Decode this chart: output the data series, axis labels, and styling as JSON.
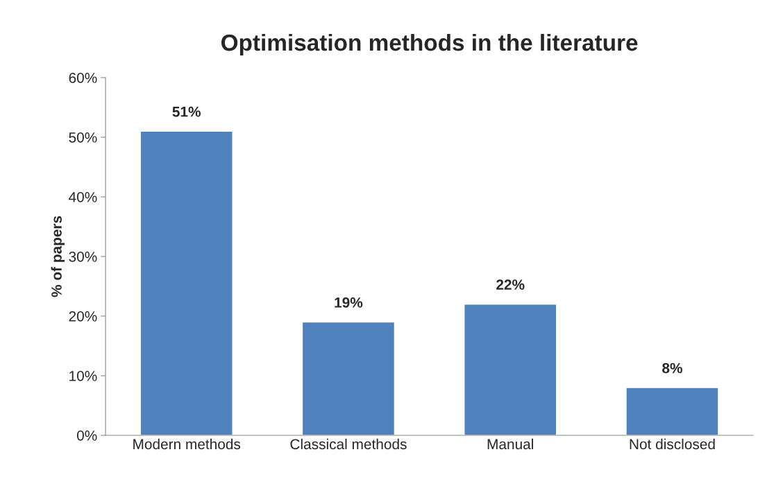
{
  "chart_data": {
    "type": "bar",
    "title": "Optimisation methods in the literature",
    "ylabel": "% of papers",
    "categories": [
      "Modern methods",
      "Classical methods",
      "Manual",
      "Not disclosed"
    ],
    "values": [
      51,
      19,
      22,
      8
    ],
    "value_labels": [
      "51%",
      "19%",
      "22%",
      "8%"
    ],
    "color": "#4f81bd",
    "ylim": [
      0,
      60
    ],
    "yticks": [
      {
        "value": 0,
        "label": "0%"
      },
      {
        "value": 10,
        "label": "10%"
      },
      {
        "value": 20,
        "label": "20%"
      },
      {
        "value": 30,
        "label": "30%"
      },
      {
        "value": 40,
        "label": "40%"
      },
      {
        "value": 50,
        "label": "50%"
      },
      {
        "value": 60,
        "label": "60%"
      }
    ],
    "grid": false,
    "legend": false
  }
}
